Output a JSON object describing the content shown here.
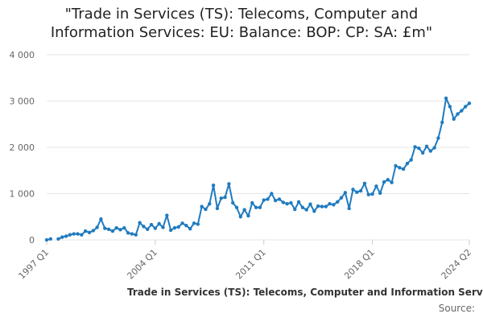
{
  "title_lines": [
    "\"Trade in Services (TS): Telecoms, Computer and",
    "Information Services: EU: Balance: BOP: CP: SA: £m\""
  ],
  "legend_label": "Trade in Services (TS): Telecoms, Computer and Information Services: EU: Balance: BOP: CP: SA: £m",
  "source_label": "Source:",
  "colors": {
    "series": "#1f7bbf",
    "grid": "#e6e6e6",
    "axis_text": "#666666"
  },
  "chart_data": {
    "type": "line",
    "title": "\"Trade in Services (TS): Telecoms, Computer and Information Services: EU: Balance: BOP: CP: SA: £m\"",
    "xlabel": "",
    "ylabel": "",
    "ylim": [
      0,
      4000
    ],
    "yticks": [
      0,
      1000,
      2000,
      3000,
      4000
    ],
    "ytick_labels": [
      "0",
      "1 000",
      "2 000",
      "3 000",
      "4 000"
    ],
    "xtick_labels": [
      "1997 Q1",
      "2004 Q1",
      "2011 Q1",
      "2018 Q1",
      "2024 Q2"
    ],
    "grid": true,
    "legend": "bottom",
    "start_period": "1997 Q1",
    "end_period": "2024 Q2",
    "series": [
      {
        "name": "Trade in Services (TS): Telecoms, Computer and Information Services: EU: Balance: BOP: CP: SA: £m",
        "values": [
          0,
          20,
          null,
          20,
          60,
          80,
          110,
          130,
          130,
          110,
          190,
          160,
          200,
          270,
          450,
          250,
          230,
          190,
          260,
          220,
          260,
          150,
          130,
          110,
          370,
          290,
          230,
          330,
          250,
          350,
          270,
          530,
          210,
          260,
          280,
          360,
          310,
          240,
          360,
          340,
          720,
          660,
          780,
          1180,
          680,
          900,
          920,
          1210,
          800,
          700,
          500,
          650,
          520,
          800,
          700,
          700,
          860,
          880,
          1000,
          850,
          880,
          810,
          780,
          800,
          660,
          820,
          700,
          650,
          770,
          620,
          730,
          720,
          720,
          780,
          760,
          820,
          910,
          1020,
          680,
          1090,
          1030,
          1060,
          1220,
          980,
          990,
          1160,
          1010,
          1250,
          1300,
          1240,
          1600,
          1560,
          1530,
          1650,
          1730,
          2010,
          1980,
          1880,
          2020,
          1920,
          1990,
          2200,
          2540,
          3060,
          2880,
          2610,
          2720,
          2790,
          2880,
          2950
        ]
      }
    ]
  }
}
